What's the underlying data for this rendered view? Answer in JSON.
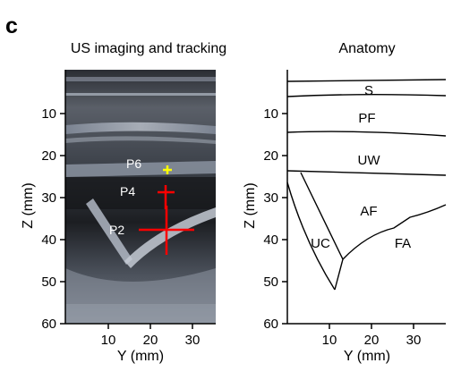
{
  "panel_label": "c",
  "us_panel": {
    "title": "US imaging and tracking",
    "xlabel": "Y (mm)",
    "ylabel": "Z (mm)",
    "x_ticks": [
      "10",
      "20",
      "30"
    ],
    "y_ticks": [
      "10",
      "20",
      "30",
      "40",
      "50",
      "60"
    ],
    "points": [
      {
        "label": "P6",
        "y_mm": 24,
        "z_mm": 23.5,
        "marker_color": "#ffff00"
      },
      {
        "label": "P4",
        "y_mm": 24,
        "z_mm": 29,
        "marker_color": "#ff0000"
      },
      {
        "label": "P2",
        "y_mm": 24.5,
        "z_mm": 38,
        "marker_color": "#ff0000"
      }
    ]
  },
  "anatomy_panel": {
    "title": "Anatomy",
    "xlabel": "Y (mm)",
    "ylabel": "Z (mm)",
    "x_ticks": [
      "10",
      "20",
      "30"
    ],
    "y_ticks": [
      "10",
      "20",
      "30",
      "40",
      "50",
      "60"
    ],
    "regions": [
      "S",
      "PF",
      "UW",
      "AF",
      "UC",
      "FA"
    ]
  },
  "colors": {
    "axis": "#000000",
    "marker_red": "#ff0000",
    "marker_yellow": "#ffff00"
  }
}
